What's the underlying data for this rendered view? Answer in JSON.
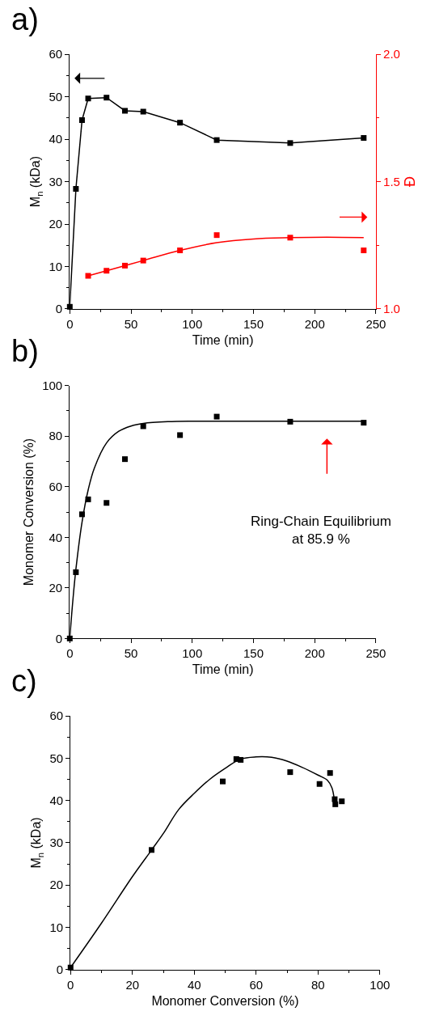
{
  "chart_data": [
    {
      "type": "line",
      "title": "a)",
      "xlabel": "Time (min)",
      "ylabel": "M$_{n}$ (kDa)",
      "y2label": "Đ",
      "xlim": [
        0,
        250
      ],
      "xticks": [
        0,
        50,
        100,
        150,
        200,
        250
      ],
      "ylim": [
        0,
        60
      ],
      "yticks": [
        0,
        10,
        20,
        30,
        40,
        50,
        60
      ],
      "y2lim": [
        1.0,
        2.0
      ],
      "y2ticks": [
        {
          "value": 1.0,
          "label": "1.0"
        },
        1.5,
        {
          "value": 2.0,
          "label": "2.0"
        }
      ],
      "marker": "square",
      "series": [
        {
          "color": "#000000",
          "x": [
            0,
            5,
            10,
            15,
            30,
            45,
            60,
            90,
            120,
            180,
            240
          ],
          "values": [
            0.5,
            28.3,
            44.5,
            49.6,
            49.8,
            46.7,
            46.5,
            43.9,
            39.8,
            39.1,
            40.3
          ]
        },
        {
          "type": "scatter",
          "axis": "y2",
          "color": "#ff0000",
          "x": [
            15,
            30,
            45,
            60,
            90,
            120,
            180,
            240
          ],
          "values": [
            1.13,
            1.15,
            1.17,
            1.19,
            1.23,
            1.29,
            1.28,
            1.23
          ]
        },
        {
          "axis": "y2",
          "marker": "none",
          "color": "#ff0000",
          "x": [
            15,
            30,
            60,
            90,
            120,
            150,
            180,
            210,
            240
          ],
          "values": [
            1.13,
            1.15,
            1.19,
            1.23,
            1.26,
            1.275,
            1.28,
            1.282,
            1.28
          ]
        }
      ]
    },
    {
      "type": "scatter",
      "title": "b)",
      "xlabel": "Time (min)",
      "ylabel": "Monomer Conversion (%)",
      "xlim": [
        0,
        250
      ],
      "xticks": [
        0,
        50,
        100,
        150,
        200,
        250
      ],
      "ylim": [
        0,
        100
      ],
      "yticks": [
        0,
        20,
        40,
        60,
        80,
        100
      ],
      "marker": "square",
      "annotations": [
        "Ring-Chain Equilibrium\nat 85.9 %"
      ],
      "series": [
        {
          "color": "#000000",
          "x": [
            0,
            5,
            10,
            15,
            30,
            45,
            60,
            90,
            120,
            180,
            240
          ],
          "values": [
            0,
            26.2,
            49.1,
            55.0,
            53.6,
            70.9,
            83.9,
            80.4,
            87.7,
            85.7,
            85.3
          ]
        },
        {
          "type": "line",
          "marker": "none",
          "color": "#000000",
          "x": [
            0,
            2.5,
            5,
            10,
            15,
            20,
            30,
            40,
            50,
            60,
            80,
            100,
            150,
            200,
            240
          ],
          "values": [
            0,
            15.0,
            27.4,
            46.0,
            58.7,
            67.3,
            77.3,
            81.9,
            84.0,
            85.0,
            85.7,
            85.9,
            85.9,
            85.9,
            85.9
          ]
        }
      ]
    },
    {
      "type": "scatter",
      "title": "c)",
      "xlabel": "Monomer Conversion (%)",
      "ylabel": "M$_{n}$ (kDa)",
      "xlim": [
        0,
        100
      ],
      "xticks": [
        0,
        20,
        40,
        60,
        80,
        100
      ],
      "ylim": [
        0,
        60
      ],
      "yticks": [
        0,
        10,
        20,
        30,
        40,
        50,
        60
      ],
      "marker": "square",
      "series": [
        {
          "color": "#000000",
          "x": [
            0,
            26.2,
            49.2,
            53.6,
            55.0,
            71.0,
            80.5,
            83.9,
            85.4,
            85.6,
            87.7
          ],
          "values": [
            0.5,
            28.3,
            44.5,
            49.8,
            49.6,
            46.7,
            43.9,
            46.5,
            40.3,
            39.1,
            39.8
          ]
        },
        {
          "type": "line",
          "marker": "none",
          "color": "#000000",
          "x": [
            0,
            10,
            20,
            26.2,
            30,
            35,
            40,
            45,
            50,
            55,
            60,
            65,
            70,
            75,
            80,
            83,
            84.5,
            85.3
          ],
          "values": [
            0.5,
            11,
            22,
            28.3,
            32.2,
            37.9,
            41.7,
            45.0,
            47.6,
            49.8,
            50.3,
            50.2,
            49.3,
            47.8,
            46.0,
            44.8,
            43.0,
            40.0
          ]
        }
      ]
    }
  ]
}
